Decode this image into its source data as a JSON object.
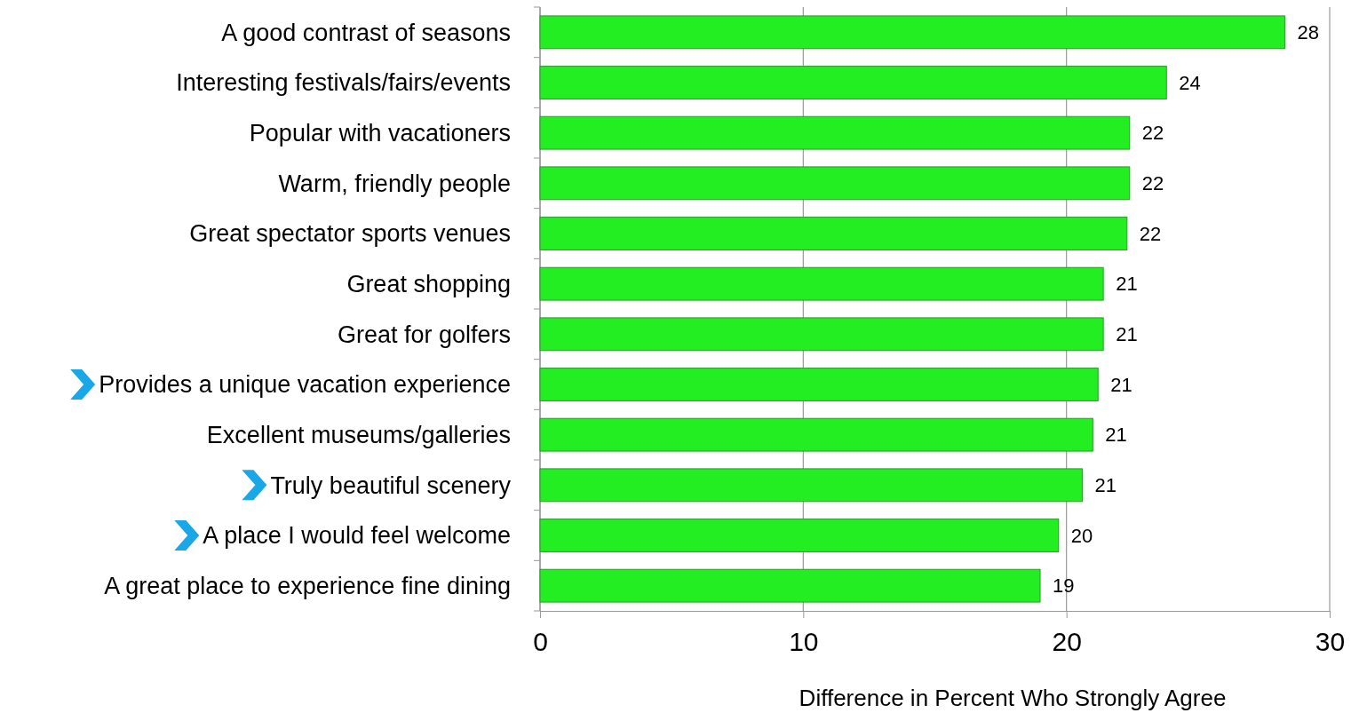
{
  "chart_data": {
    "type": "bar",
    "orientation": "horizontal",
    "xlabel": "Difference in Percent Who Strongly Agree",
    "categories": [
      "A good contrast of seasons",
      "Interesting festivals/fairs/events",
      "Popular with vacationers",
      "Warm, friendly people",
      "Great spectator sports venues",
      "Great shopping",
      "Great for golfers",
      "Provides a unique vacation experience",
      "Excellent museums/galleries",
      "Truly beautiful scenery",
      "A place I would feel welcome",
      "A great place to experience fine dining"
    ],
    "values": [
      28.3,
      23.8,
      22.4,
      22.4,
      22.3,
      21.4,
      21.4,
      21.2,
      21.0,
      20.6,
      19.7,
      19.0
    ],
    "value_labels": [
      "28",
      "24",
      "22",
      "22",
      "22",
      "21",
      "21",
      "21",
      "21",
      "21",
      "20",
      "19"
    ],
    "color": "#22ee22",
    "xlim": [
      0,
      30
    ],
    "xticks": [
      0,
      10,
      20,
      30
    ],
    "grid": "x"
  }
}
